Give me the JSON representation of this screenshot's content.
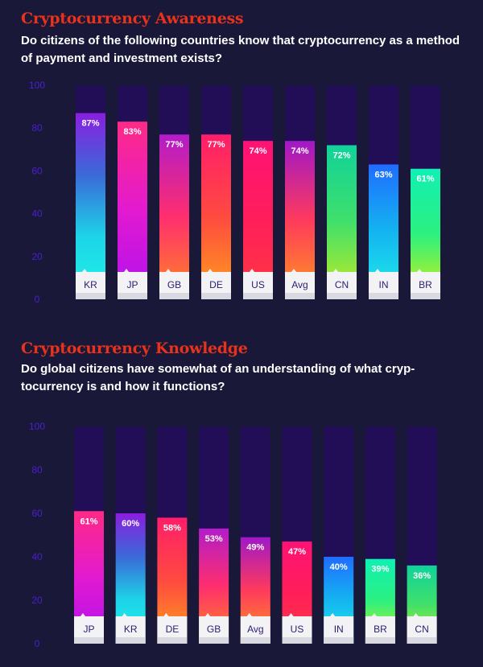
{
  "palette": {
    "background": "#1a1838",
    "track": "#220e56",
    "title": "#e8321a",
    "tick": "#4a1fd0"
  },
  "gradients": {
    "purple_cyan": [
      "#8a1ee0",
      "#3a6ad8",
      "#1dd4e8",
      "#1ff5e8"
    ],
    "pink_purple": [
      "#ff2a86",
      "#e21ad0",
      "#b010f0"
    ],
    "magenta_orange": [
      "#b21cc9",
      "#ff2e6e",
      "#ff8a20"
    ],
    "red_orange": [
      "#ff1e6a",
      "#ff4a40",
      "#ffa21a"
    ],
    "pink_red": [
      "#ff1275",
      "#ff1e5a",
      "#ff3a40"
    ],
    "purple_orange": [
      "#a018c8",
      "#ff3a5c",
      "#ff9a1c"
    ],
    "green_yellow": [
      "#10d29a",
      "#40e06a",
      "#c8ec20"
    ],
    "blue_cyan": [
      "#1f6dff",
      "#14b4f0",
      "#1ff0e8"
    ],
    "cyan_yellow": [
      "#10f0b4",
      "#2cf080",
      "#d4f010"
    ]
  },
  "chart_data": [
    {
      "type": "bar",
      "title": "Cryptocurrency Awareness",
      "subtitle": "Do citizens of the following countries know that cryptocurrency as a method of payment and investment exists?",
      "categories": [
        "KR",
        "JP",
        "GB",
        "DE",
        "US",
        "Avg",
        "CN",
        "IN",
        "BR"
      ],
      "values": [
        87,
        83,
        77,
        77,
        74,
        74,
        72,
        63,
        61
      ],
      "labels": [
        "87%",
        "83%",
        "77%",
        "77%",
        "74%",
        "74%",
        "72%",
        "63%",
        "61%"
      ],
      "gradients": [
        "purple_cyan",
        "pink_purple",
        "magenta_orange",
        "red_orange",
        "pink_red",
        "purple_orange",
        "green_yellow",
        "blue_cyan",
        "cyan_yellow"
      ],
      "yticks": [
        0,
        20,
        40,
        60,
        80,
        100
      ],
      "ylim": [
        0,
        100
      ]
    },
    {
      "type": "bar",
      "title": "Cryptocurrency Knowledge",
      "subtitle": "Do global citizens have somewhat of an understanding of what cryp-tocurrency is and how it functions?",
      "categories": [
        "JP",
        "KR",
        "DE",
        "GB",
        "Avg",
        "US",
        "IN",
        "BR",
        "CN"
      ],
      "values": [
        61,
        60,
        58,
        53,
        49,
        47,
        40,
        39,
        36
      ],
      "labels": [
        "61%",
        "60%",
        "58%",
        "53%",
        "49%",
        "47%",
        "40%",
        "39%",
        "36%"
      ],
      "gradients": [
        "pink_purple",
        "purple_cyan",
        "red_orange",
        "magenta_orange",
        "purple_orange",
        "pink_red",
        "blue_cyan",
        "cyan_yellow",
        "green_yellow"
      ],
      "yticks": [
        0,
        20,
        40,
        60,
        80,
        100
      ],
      "ylim": [
        0,
        100
      ]
    }
  ]
}
